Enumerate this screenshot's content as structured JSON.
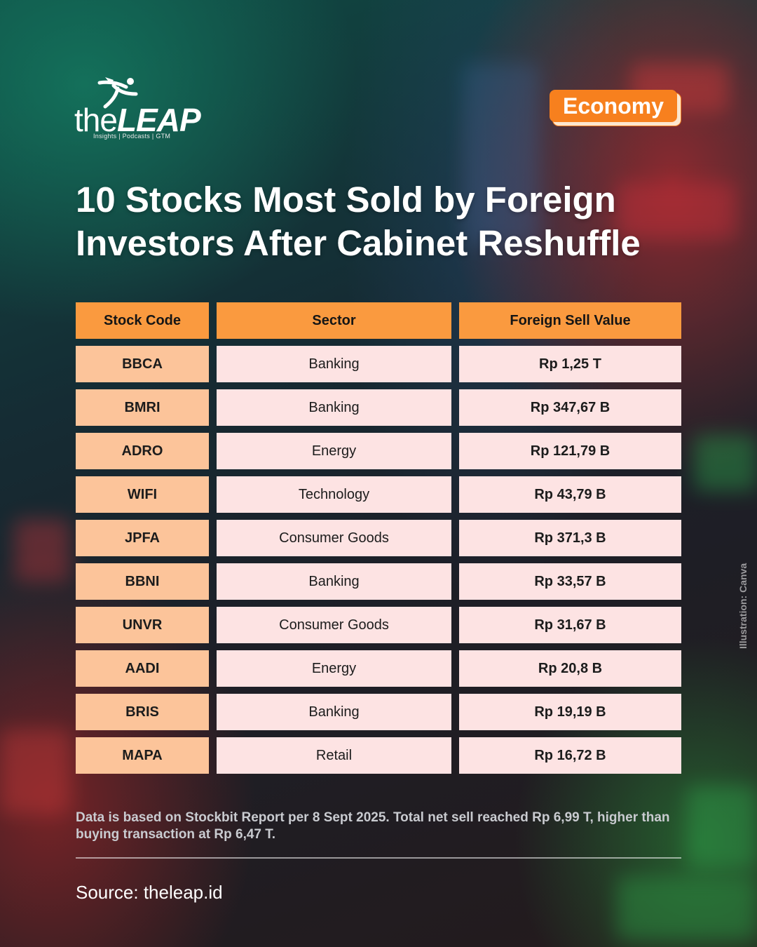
{
  "brand": {
    "name_part1": "the",
    "name_part2": "LEAP",
    "tagline": "Insights | Podcasts | GTM"
  },
  "category_badge": "Economy",
  "title": "10 Stocks Most Sold by Foreign Investors After Cabinet Reshuffle",
  "table": {
    "headers": [
      "Stock Code",
      "Sector",
      "Foreign Sell Value"
    ],
    "rows": [
      {
        "code": "BBCA",
        "sector": "Banking",
        "value": "Rp 1,25 T"
      },
      {
        "code": "BMRI",
        "sector": "Banking",
        "value": "Rp 347,67 B"
      },
      {
        "code": "ADRO",
        "sector": "Energy",
        "value": "Rp 121,79 B"
      },
      {
        "code": "WIFI",
        "sector": "Technology",
        "value": "Rp 43,79 B"
      },
      {
        "code": "JPFA",
        "sector": "Consumer Goods",
        "value": "Rp 371,3 B"
      },
      {
        "code": "BBNI",
        "sector": "Banking",
        "value": "Rp 33,57 B"
      },
      {
        "code": "UNVR",
        "sector": "Consumer Goods",
        "value": "Rp 31,67 B"
      },
      {
        "code": "AADI",
        "sector": "Energy",
        "value": "Rp 20,8 B"
      },
      {
        "code": "BRIS",
        "sector": "Banking",
        "value": "Rp 19,19 B"
      },
      {
        "code": "MAPA",
        "sector": "Retail",
        "value": "Rp 16,72 B"
      }
    ]
  },
  "note": "Data is based on Stockbit Report per 8 Sept 2025. Total net sell reached Rp 6,99 T, higher than buying transaction at Rp 6,47 T.",
  "source": "Source: theleap.id",
  "credit": "Illustration: Canva",
  "colors": {
    "accent": "#f7801e",
    "header_cell": "#fa9a3f",
    "code_cell": "#fcc49a",
    "data_cell": "#fde3e3"
  }
}
